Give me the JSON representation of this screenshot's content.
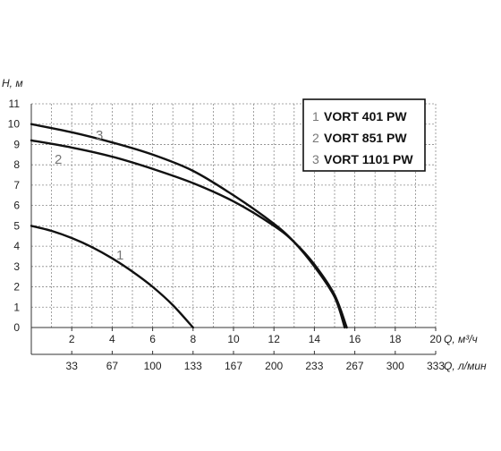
{
  "chart_data": {
    "type": "line",
    "x_axis_label": "Q, м³/ч",
    "x2_axis_label": "Q, л/мин",
    "y_axis_label": "H, м",
    "xlim": [
      0,
      20
    ],
    "ylim": [
      0,
      11
    ],
    "x_ticks": [
      "2",
      "4",
      "6",
      "8",
      "10",
      "12",
      "14",
      "16",
      "18",
      "20"
    ],
    "x2_ticks": [
      "33",
      "67",
      "100",
      "133",
      "167",
      "200",
      "233",
      "267",
      "300",
      "333"
    ],
    "y_ticks": [
      "0",
      "1",
      "2",
      "3",
      "4",
      "5",
      "6",
      "7",
      "8",
      "9",
      "10",
      "11"
    ],
    "grid": true,
    "legend_position": "top-right",
    "series": [
      {
        "id": "1",
        "name": "VORT 401 PW",
        "color": "#111111",
        "points": [
          [
            0,
            5.0
          ],
          [
            1,
            4.75
          ],
          [
            2,
            4.4
          ],
          [
            3,
            3.95
          ],
          [
            4,
            3.4
          ],
          [
            5,
            2.75
          ],
          [
            6,
            2.0
          ],
          [
            7,
            1.1
          ],
          [
            8,
            0
          ]
        ]
      },
      {
        "id": "2",
        "name": "VORT 851 PW",
        "color": "#111111",
        "points": [
          [
            0,
            9.2
          ],
          [
            2,
            8.85
          ],
          [
            4,
            8.4
          ],
          [
            6,
            7.8
          ],
          [
            8,
            7.1
          ],
          [
            10,
            6.2
          ],
          [
            12,
            5.0
          ],
          [
            13,
            4.2
          ],
          [
            14,
            3.1
          ],
          [
            15,
            1.6
          ],
          [
            15.6,
            0
          ]
        ]
      },
      {
        "id": "3",
        "name": "VORT 1101 PW",
        "color": "#111111",
        "points": [
          [
            0,
            10.0
          ],
          [
            2,
            9.6
          ],
          [
            4,
            9.1
          ],
          [
            6,
            8.5
          ],
          [
            8,
            7.7
          ],
          [
            10,
            6.5
          ],
          [
            12,
            5.1
          ],
          [
            13,
            4.2
          ],
          [
            14,
            3.0
          ],
          [
            15,
            1.5
          ],
          [
            15.5,
            0
          ]
        ]
      }
    ]
  }
}
